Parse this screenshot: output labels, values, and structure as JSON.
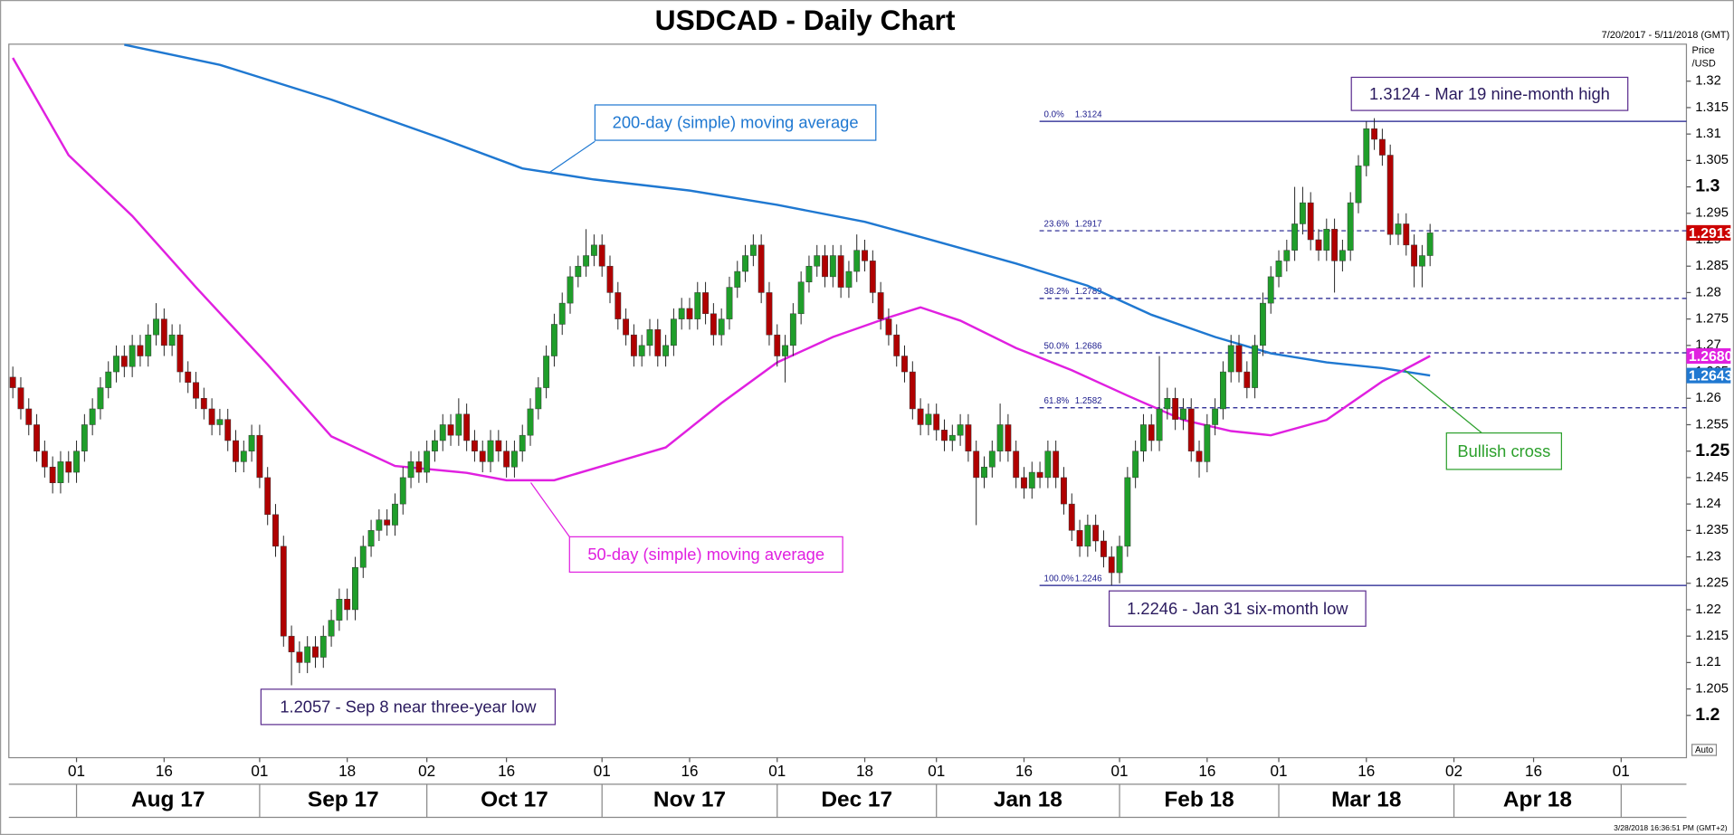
{
  "chart_data": {
    "type": "candlestick",
    "title": "USDCAD - Daily Chart",
    "date_range": "7/20/2017 - 5/11/2018 (GMT)",
    "y_axis_label": [
      "Price",
      "/USD"
    ],
    "timestamp": "3/28/2018 16:36:51 PM (GMT+2)",
    "scale_button": "Auto",
    "up_color": "#1f9e2a",
    "down_color": "#b00000",
    "grid": false,
    "xlim": [
      -0.5,
      210.2
    ],
    "ylim": [
      1.192,
      1.327
    ],
    "yticks": [
      1.2,
      1.205,
      1.21,
      1.215,
      1.22,
      1.225,
      1.23,
      1.235,
      1.24,
      1.245,
      1.25,
      1.255,
      1.26,
      1.265,
      1.27,
      1.275,
      1.28,
      1.285,
      1.29,
      1.295,
      1.3,
      1.305,
      1.31,
      1.315,
      1.32
    ],
    "xticks": [
      {
        "value": 8,
        "label": "01"
      },
      {
        "value": 19,
        "label": "16"
      },
      {
        "value": 31,
        "label": "01"
      },
      {
        "value": 42,
        "label": "18"
      },
      {
        "value": 52,
        "label": "02"
      },
      {
        "value": 62,
        "label": "16"
      },
      {
        "value": 74,
        "label": "01"
      },
      {
        "value": 85,
        "label": "16"
      },
      {
        "value": 96,
        "label": "01"
      },
      {
        "value": 107,
        "label": "18"
      },
      {
        "value": 116,
        "label": "01"
      },
      {
        "value": 127,
        "label": "16"
      },
      {
        "value": 139,
        "label": "01"
      },
      {
        "value": 150,
        "label": "16"
      },
      {
        "value": 159,
        "label": "01"
      },
      {
        "value": 170,
        "label": "16"
      },
      {
        "value": 181,
        "label": "02"
      },
      {
        "value": 191,
        "label": "16"
      },
      {
        "value": 202,
        "label": "01"
      }
    ],
    "month_labels": [
      "Aug 17",
      "Sep 17",
      "Oct 17",
      "Nov 17",
      "Dec 17",
      "Jan 18",
      "Feb 18",
      "Mar 18",
      "Apr 18"
    ],
    "ohlc": [
      [
        1.264,
        1.266,
        1.26,
        1.262
      ],
      [
        1.262,
        1.264,
        1.256,
        1.258
      ],
      [
        1.258,
        1.26,
        1.253,
        1.255
      ],
      [
        1.255,
        1.257,
        1.248,
        1.25
      ],
      [
        1.25,
        1.252,
        1.245,
        1.247
      ],
      [
        1.247,
        1.249,
        1.242,
        1.244
      ],
      [
        1.244,
        1.25,
        1.242,
        1.248
      ],
      [
        1.248,
        1.25,
        1.244,
        1.246
      ],
      [
        1.246,
        1.252,
        1.244,
        1.25
      ],
      [
        1.25,
        1.257,
        1.248,
        1.255
      ],
      [
        1.255,
        1.26,
        1.253,
        1.258
      ],
      [
        1.258,
        1.264,
        1.256,
        1.262
      ],
      [
        1.262,
        1.267,
        1.26,
        1.265
      ],
      [
        1.265,
        1.27,
        1.263,
        1.268
      ],
      [
        1.268,
        1.27,
        1.264,
        1.266
      ],
      [
        1.266,
        1.272,
        1.264,
        1.27
      ],
      [
        1.27,
        1.272,
        1.266,
        1.268
      ],
      [
        1.268,
        1.274,
        1.266,
        1.272
      ],
      [
        1.272,
        1.278,
        1.27,
        1.275
      ],
      [
        1.275,
        1.277,
        1.268,
        1.27
      ],
      [
        1.27,
        1.274,
        1.268,
        1.272
      ],
      [
        1.272,
        1.274,
        1.263,
        1.265
      ],
      [
        1.265,
        1.267,
        1.261,
        1.263
      ],
      [
        1.263,
        1.265,
        1.258,
        1.26
      ],
      [
        1.26,
        1.262,
        1.256,
        1.258
      ],
      [
        1.258,
        1.26,
        1.253,
        1.255
      ],
      [
        1.255,
        1.258,
        1.253,
        1.256
      ],
      [
        1.256,
        1.258,
        1.25,
        1.252
      ],
      [
        1.252,
        1.254,
        1.246,
        1.248
      ],
      [
        1.248,
        1.252,
        1.246,
        1.25
      ],
      [
        1.25,
        1.255,
        1.248,
        1.253
      ],
      [
        1.253,
        1.255,
        1.243,
        1.245
      ],
      [
        1.245,
        1.247,
        1.236,
        1.238
      ],
      [
        1.238,
        1.24,
        1.23,
        1.232
      ],
      [
        1.232,
        1.234,
        1.213,
        1.215
      ],
      [
        1.215,
        1.217,
        1.2057,
        1.212
      ],
      [
        1.212,
        1.214,
        1.208,
        1.21
      ],
      [
        1.21,
        1.215,
        1.208,
        1.213
      ],
      [
        1.213,
        1.215,
        1.209,
        1.211
      ],
      [
        1.211,
        1.217,
        1.209,
        1.215
      ],
      [
        1.215,
        1.22,
        1.213,
        1.218
      ],
      [
        1.218,
        1.224,
        1.216,
        1.222
      ],
      [
        1.222,
        1.224,
        1.218,
        1.22
      ],
      [
        1.22,
        1.23,
        1.218,
        1.228
      ],
      [
        1.228,
        1.234,
        1.226,
        1.232
      ],
      [
        1.232,
        1.237,
        1.23,
        1.235
      ],
      [
        1.235,
        1.239,
        1.233,
        1.237
      ],
      [
        1.237,
        1.239,
        1.234,
        1.236
      ],
      [
        1.236,
        1.242,
        1.234,
        1.24
      ],
      [
        1.24,
        1.247,
        1.238,
        1.245
      ],
      [
        1.245,
        1.25,
        1.243,
        1.248
      ],
      [
        1.248,
        1.25,
        1.244,
        1.246
      ],
      [
        1.246,
        1.252,
        1.244,
        1.25
      ],
      [
        1.25,
        1.254,
        1.248,
        1.252
      ],
      [
        1.252,
        1.257,
        1.25,
        1.255
      ],
      [
        1.255,
        1.257,
        1.251,
        1.253
      ],
      [
        1.253,
        1.26,
        1.251,
        1.257
      ],
      [
        1.257,
        1.259,
        1.25,
        1.252
      ],
      [
        1.252,
        1.254,
        1.248,
        1.25
      ],
      [
        1.25,
        1.252,
        1.246,
        1.248
      ],
      [
        1.248,
        1.254,
        1.246,
        1.252
      ],
      [
        1.252,
        1.254,
        1.248,
        1.25
      ],
      [
        1.25,
        1.252,
        1.245,
        1.247
      ],
      [
        1.247,
        1.252,
        1.245,
        1.25
      ],
      [
        1.25,
        1.255,
        1.248,
        1.253
      ],
      [
        1.253,
        1.26,
        1.251,
        1.258
      ],
      [
        1.258,
        1.264,
        1.256,
        1.262
      ],
      [
        1.262,
        1.27,
        1.26,
        1.268
      ],
      [
        1.268,
        1.276,
        1.266,
        1.274
      ],
      [
        1.274,
        1.28,
        1.272,
        1.278
      ],
      [
        1.278,
        1.285,
        1.276,
        1.283
      ],
      [
        1.283,
        1.287,
        1.281,
        1.285
      ],
      [
        1.285,
        1.292,
        1.283,
        1.287
      ],
      [
        1.287,
        1.291,
        1.285,
        1.289
      ],
      [
        1.289,
        1.291,
        1.283,
        1.285
      ],
      [
        1.285,
        1.287,
        1.278,
        1.28
      ],
      [
        1.28,
        1.282,
        1.273,
        1.275
      ],
      [
        1.275,
        1.277,
        1.27,
        1.272
      ],
      [
        1.272,
        1.274,
        1.266,
        1.268
      ],
      [
        1.268,
        1.272,
        1.266,
        1.27
      ],
      [
        1.27,
        1.275,
        1.268,
        1.273
      ],
      [
        1.273,
        1.275,
        1.266,
        1.268
      ],
      [
        1.268,
        1.272,
        1.266,
        1.27
      ],
      [
        1.27,
        1.277,
        1.268,
        1.275
      ],
      [
        1.275,
        1.279,
        1.273,
        1.277
      ],
      [
        1.277,
        1.279,
        1.273,
        1.275
      ],
      [
        1.275,
        1.282,
        1.273,
        1.28
      ],
      [
        1.28,
        1.282,
        1.274,
        1.276
      ],
      [
        1.276,
        1.278,
        1.27,
        1.272
      ],
      [
        1.272,
        1.277,
        1.27,
        1.275
      ],
      [
        1.275,
        1.283,
        1.273,
        1.281
      ],
      [
        1.281,
        1.286,
        1.279,
        1.284
      ],
      [
        1.284,
        1.289,
        1.282,
        1.287
      ],
      [
        1.287,
        1.291,
        1.285,
        1.289
      ],
      [
        1.289,
        1.291,
        1.278,
        1.28
      ],
      [
        1.28,
        1.282,
        1.27,
        1.272
      ],
      [
        1.272,
        1.274,
        1.266,
        1.268
      ],
      [
        1.268,
        1.272,
        1.263,
        1.27
      ],
      [
        1.27,
        1.278,
        1.268,
        1.276
      ],
      [
        1.276,
        1.284,
        1.274,
        1.282
      ],
      [
        1.282,
        1.287,
        1.28,
        1.285
      ],
      [
        1.285,
        1.289,
        1.283,
        1.287
      ],
      [
        1.287,
        1.289,
        1.281,
        1.283
      ],
      [
        1.283,
        1.289,
        1.281,
        1.287
      ],
      [
        1.287,
        1.289,
        1.279,
        1.281
      ],
      [
        1.281,
        1.286,
        1.279,
        1.284
      ],
      [
        1.284,
        1.291,
        1.282,
        1.288
      ],
      [
        1.288,
        1.29,
        1.284,
        1.286
      ],
      [
        1.286,
        1.288,
        1.278,
        1.28
      ],
      [
        1.28,
        1.282,
        1.273,
        1.275
      ],
      [
        1.275,
        1.277,
        1.27,
        1.272
      ],
      [
        1.272,
        1.274,
        1.266,
        1.268
      ],
      [
        1.268,
        1.27,
        1.263,
        1.265
      ],
      [
        1.265,
        1.267,
        1.256,
        1.258
      ],
      [
        1.258,
        1.26,
        1.253,
        1.255
      ],
      [
        1.255,
        1.259,
        1.253,
        1.257
      ],
      [
        1.257,
        1.259,
        1.252,
        1.254
      ],
      [
        1.254,
        1.256,
        1.25,
        1.252
      ],
      [
        1.252,
        1.255,
        1.25,
        1.253
      ],
      [
        1.253,
        1.257,
        1.251,
        1.255
      ],
      [
        1.255,
        1.257,
        1.248,
        1.25
      ],
      [
        1.25,
        1.252,
        1.236,
        1.245
      ],
      [
        1.245,
        1.249,
        1.243,
        1.247
      ],
      [
        1.247,
        1.252,
        1.245,
        1.25
      ],
      [
        1.25,
        1.259,
        1.248,
        1.255
      ],
      [
        1.255,
        1.257,
        1.248,
        1.25
      ],
      [
        1.25,
        1.252,
        1.243,
        1.245
      ],
      [
        1.245,
        1.247,
        1.241,
        1.243
      ],
      [
        1.243,
        1.248,
        1.241,
        1.246
      ],
      [
        1.246,
        1.248,
        1.243,
        1.245
      ],
      [
        1.245,
        1.252,
        1.243,
        1.25
      ],
      [
        1.25,
        1.252,
        1.243,
        1.245
      ],
      [
        1.245,
        1.247,
        1.238,
        1.24
      ],
      [
        1.24,
        1.242,
        1.233,
        1.235
      ],
      [
        1.235,
        1.237,
        1.23,
        1.232
      ],
      [
        1.232,
        1.238,
        1.23,
        1.236
      ],
      [
        1.236,
        1.238,
        1.231,
        1.233
      ],
      [
        1.233,
        1.235,
        1.228,
        1.23
      ],
      [
        1.23,
        1.232,
        1.2246,
        1.227
      ],
      [
        1.227,
        1.234,
        1.225,
        1.232
      ],
      [
        1.232,
        1.247,
        1.23,
        1.245
      ],
      [
        1.245,
        1.252,
        1.243,
        1.25
      ],
      [
        1.25,
        1.257,
        1.248,
        1.255
      ],
      [
        1.255,
        1.257,
        1.25,
        1.252
      ],
      [
        1.252,
        1.268,
        1.25,
        1.258
      ],
      [
        1.258,
        1.262,
        1.256,
        1.26
      ],
      [
        1.26,
        1.262,
        1.254,
        1.256
      ],
      [
        1.256,
        1.26,
        1.254,
        1.258
      ],
      [
        1.258,
        1.26,
        1.248,
        1.25
      ],
      [
        1.25,
        1.252,
        1.245,
        1.248
      ],
      [
        1.248,
        1.257,
        1.246,
        1.255
      ],
      [
        1.255,
        1.26,
        1.253,
        1.258
      ],
      [
        1.258,
        1.267,
        1.256,
        1.265
      ],
      [
        1.265,
        1.272,
        1.263,
        1.27
      ],
      [
        1.27,
        1.272,
        1.263,
        1.265
      ],
      [
        1.265,
        1.267,
        1.26,
        1.262
      ],
      [
        1.262,
        1.272,
        1.26,
        1.27
      ],
      [
        1.27,
        1.28,
        1.268,
        1.278
      ],
      [
        1.278,
        1.285,
        1.276,
        1.283
      ],
      [
        1.283,
        1.288,
        1.281,
        1.286
      ],
      [
        1.286,
        1.29,
        1.284,
        1.288
      ],
      [
        1.288,
        1.3,
        1.286,
        1.293
      ],
      [
        1.293,
        1.3,
        1.291,
        1.297
      ],
      [
        1.297,
        1.299,
        1.288,
        1.29
      ],
      [
        1.29,
        1.292,
        1.286,
        1.288
      ],
      [
        1.288,
        1.294,
        1.286,
        1.292
      ],
      [
        1.292,
        1.294,
        1.28,
        1.286
      ],
      [
        1.286,
        1.29,
        1.284,
        1.288
      ],
      [
        1.288,
        1.299,
        1.286,
        1.297
      ],
      [
        1.297,
        1.306,
        1.295,
        1.304
      ],
      [
        1.304,
        1.3124,
        1.302,
        1.311
      ],
      [
        1.311,
        1.313,
        1.307,
        1.309
      ],
      [
        1.309,
        1.311,
        1.304,
        1.306
      ],
      [
        1.306,
        1.308,
        1.289,
        1.291
      ],
      [
        1.291,
        1.295,
        1.289,
        1.293
      ],
      [
        1.293,
        1.295,
        1.287,
        1.289
      ],
      [
        1.289,
        1.291,
        1.281,
        1.285
      ],
      [
        1.285,
        1.289,
        1.281,
        1.287
      ],
      [
        1.287,
        1.293,
        1.285,
        1.2913
      ]
    ],
    "series": [
      {
        "name": "200-day (simple) moving average",
        "color": "#1f78d1",
        "x": [
          14,
          26,
          40,
          54,
          64,
          73,
          85,
          96,
          107,
          116,
          126,
          135,
          143,
          151,
          158,
          165,
          172,
          178
        ],
        "values": [
          1.3269,
          1.3231,
          1.3165,
          1.3091,
          1.3035,
          1.3014,
          1.2993,
          1.2966,
          1.2934,
          1.2897,
          1.2855,
          1.2813,
          1.2758,
          1.2716,
          1.2685,
          1.2668,
          1.2657,
          1.2643
        ]
      },
      {
        "name": "50-day (simple) moving average",
        "color": "#e020e0",
        "x": [
          0,
          7,
          15,
          23,
          32,
          40,
          48,
          57,
          62,
          68,
          75,
          82,
          89,
          96,
          103,
          110,
          114,
          119,
          126,
          133,
          140,
          147,
          153,
          158,
          165,
          172,
          178
        ],
        "values": [
          1.3244,
          1.306,
          1.2945,
          1.281,
          1.2664,
          1.2528,
          1.2472,
          1.2459,
          1.2445,
          1.2445,
          1.2476,
          1.2507,
          1.2591,
          1.2668,
          1.2716,
          1.2753,
          1.2772,
          1.2747,
          1.2695,
          1.2653,
          1.2605,
          1.2559,
          1.2538,
          1.253,
          1.2559,
          1.2632,
          1.268
        ]
      }
    ],
    "fibonacci": [
      {
        "label": "0.0%",
        "value": 1.3124
      },
      {
        "label": "23.6%",
        "value": 1.2917
      },
      {
        "label": "38.2%",
        "value": 1.2789
      },
      {
        "label": "50.0%",
        "value": 1.2686
      },
      {
        "label": "61.8%",
        "value": 1.2582
      },
      {
        "label": "100.0%",
        "value": 1.2246
      }
    ],
    "annotations": [
      "1.3124 - Mar 19 nine-month high",
      "Bullish cross",
      "1.2246 - Jan 31 six-month low",
      "1.2057 - Sep 8 near three-year low"
    ],
    "price_tags": [
      {
        "value": 1.2913,
        "color": "#cc0000"
      },
      {
        "value": 1.268,
        "label": "1.2680",
        "color": "#e020e0"
      },
      {
        "value": 1.2643,
        "color": "#1f78d1"
      }
    ]
  }
}
